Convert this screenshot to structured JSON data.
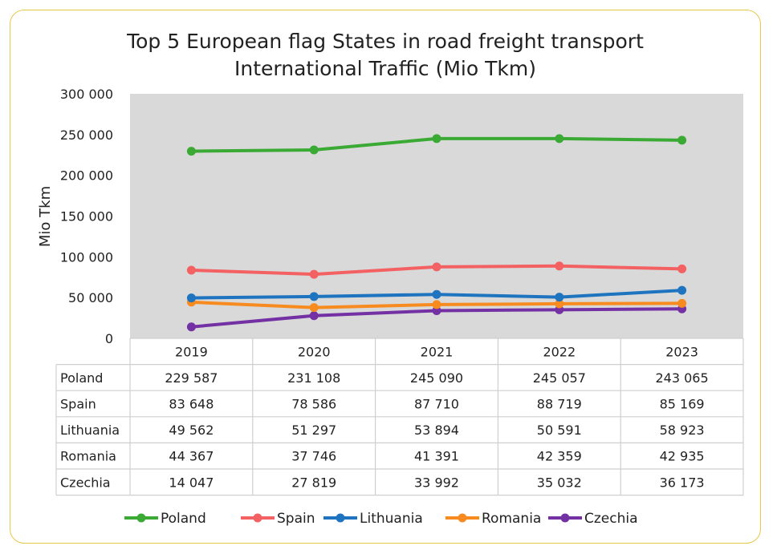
{
  "chart_data": {
    "type": "line",
    "title": [
      "Top 5 European flag States in road freight transport",
      "International Traffic (Mio Tkm)"
    ],
    "ylabel": "Mio Tkm",
    "xlabel": "",
    "ylim": [
      0,
      300000
    ],
    "yticks": [
      "0",
      "50 000",
      "100 000",
      "150 000",
      "200 000",
      "250 000",
      "300 000"
    ],
    "grid": false,
    "legend": "bottom",
    "categories": [
      "2019",
      "2020",
      "2021",
      "2022",
      "2023"
    ],
    "series": [
      {
        "name": "Poland",
        "color": "#3aaa35",
        "values": [
          229587,
          231108,
          245090,
          245057,
          243065
        ],
        "labels": [
          "229 587",
          "231 108",
          "245 090",
          "245 057",
          "243 065"
        ]
      },
      {
        "name": "Spain",
        "color": "#f36163",
        "values": [
          83648,
          78586,
          87710,
          88719,
          85169
        ],
        "labels": [
          "83 648",
          "78 586",
          "87 710",
          "88 719",
          "85 169"
        ]
      },
      {
        "name": "Lithuania",
        "color": "#1f74c0",
        "values": [
          49562,
          51297,
          53894,
          50591,
          58923
        ],
        "labels": [
          "49 562",
          "51 297",
          "53 894",
          "50 591",
          "58 923"
        ]
      },
      {
        "name": "Romania",
        "color": "#f78b1f",
        "values": [
          44367,
          37746,
          41391,
          42359,
          42935
        ],
        "labels": [
          "44 367",
          "37 746",
          "41 391",
          "42 359",
          "42 935"
        ]
      },
      {
        "name": "Czechia",
        "color": "#7431a3",
        "values": [
          14047,
          27819,
          33992,
          35032,
          36173
        ],
        "labels": [
          "14 047",
          "27 819",
          "33 992",
          "35 032",
          "36 173"
        ]
      }
    ],
    "plot_background": "#d9d9d9",
    "data_table": true
  }
}
